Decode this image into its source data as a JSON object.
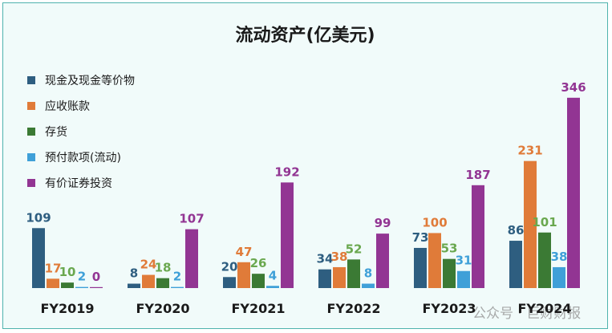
{
  "chart_data": {
    "type": "bar",
    "title": "流动资产(亿美元)",
    "categories": [
      "FY2019",
      "FY2020",
      "FY2021",
      "FY2022",
      "FY2023",
      "FY2024"
    ],
    "series": [
      {
        "name": "现金及现金等价物",
        "color": "#2e5e80",
        "values": [
          109,
          8,
          20,
          34,
          73,
          86
        ]
      },
      {
        "name": "应收账款",
        "color": "#e07b39",
        "values": [
          17,
          24,
          47,
          38,
          100,
          231
        ]
      },
      {
        "name": "存货",
        "color": "#3b7a34",
        "values": [
          10,
          18,
          26,
          52,
          53,
          101
        ]
      },
      {
        "name": "预付款项(流动)",
        "color": "#3fa0d8",
        "values": [
          2,
          2,
          4,
          8,
          31,
          38
        ]
      },
      {
        "name": "有价证券投资",
        "color": "#923593",
        "values": [
          0,
          107,
          192,
          99,
          187,
          346
        ]
      }
    ],
    "label_colors": [
      "#2e5e80",
      "#e07b39",
      "#6aa84f",
      "#3fa0d8",
      "#923593"
    ],
    "legend_position": "top-left",
    "grid": false
  },
  "watermark": "公众号 · 巨财财报"
}
